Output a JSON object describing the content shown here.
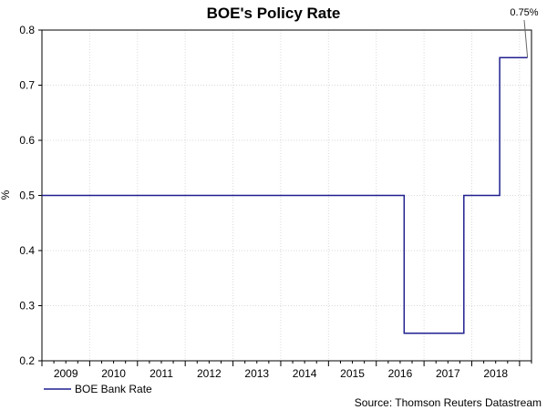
{
  "chart_data": {
    "type": "line",
    "title": "BOE's Policy Rate",
    "xlabel": "",
    "ylabel": "%",
    "ylim": [
      0.2,
      0.8
    ],
    "y_ticks": [
      "0.2",
      "0.3",
      "0.4",
      "0.5",
      "0.6",
      "0.7",
      "0.8"
    ],
    "x_tick_labels": [
      "2009",
      "2010",
      "2011",
      "2012",
      "2013",
      "2014",
      "2015",
      "2016",
      "2017",
      "2018"
    ],
    "grid": true,
    "legend_position": "bottom-left",
    "series": [
      {
        "name": "BOE Bank Rate",
        "color": "#1f1f8f",
        "step": true,
        "points": [
          {
            "x": "2009-01",
            "y": 0.5
          },
          {
            "x": "2016-08",
            "y": 0.5
          },
          {
            "x": "2016-08",
            "y": 0.25
          },
          {
            "x": "2017-11",
            "y": 0.25
          },
          {
            "x": "2017-11",
            "y": 0.5
          },
          {
            "x": "2018-08",
            "y": 0.5
          },
          {
            "x": "2018-08",
            "y": 0.75
          },
          {
            "x": "2019-03",
            "y": 0.75
          }
        ]
      }
    ],
    "annotations": [
      {
        "text": "0.75%"
      }
    ],
    "source": "Source: Thomson Reuters Datastream"
  }
}
